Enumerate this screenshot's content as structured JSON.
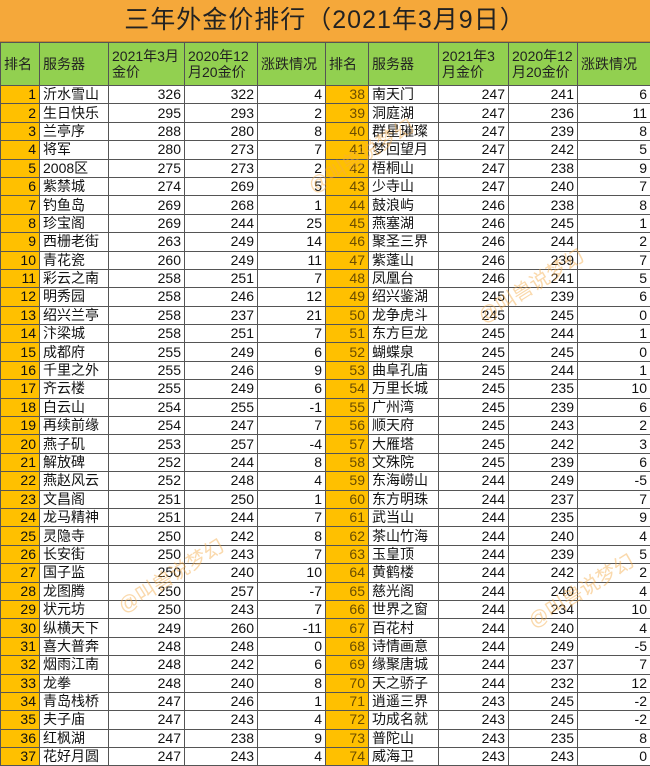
{
  "title": "三年外金价排行（2021年3月9日）",
  "headers_left": [
    "排名",
    "服务器",
    "2021年3月金价",
    "2020年12月20金价",
    "涨跌情况"
  ],
  "headers_right": [
    "排名",
    "服务器",
    "2021年3月金价",
    "2020年12月20金价",
    "涨跌情况"
  ],
  "watermark": "@叫兽说梦幻",
  "colors": {
    "title_bg": "#F5A83A",
    "header_bg": "#92D050",
    "rank_bg": "#FFC000"
  },
  "rows": [
    [
      1,
      "沂水雪山",
      326,
      322,
      4
    ],
    [
      2,
      "生日快乐",
      295,
      293,
      2
    ],
    [
      3,
      "兰亭序",
      288,
      280,
      8
    ],
    [
      4,
      "将军",
      280,
      273,
      7
    ],
    [
      5,
      "2008区",
      275,
      273,
      2
    ],
    [
      6,
      "紫禁城",
      274,
      269,
      5
    ],
    [
      7,
      "钓鱼岛",
      269,
      268,
      1
    ],
    [
      8,
      "珍宝阁",
      269,
      244,
      25
    ],
    [
      9,
      "西栅老街",
      263,
      249,
      14
    ],
    [
      10,
      "青花瓷",
      260,
      249,
      11
    ],
    [
      11,
      "彩云之南",
      258,
      251,
      7
    ],
    [
      12,
      "明秀园",
      258,
      246,
      12
    ],
    [
      13,
      "绍兴兰亭",
      258,
      237,
      21
    ],
    [
      14,
      "汴梁城",
      258,
      251,
      7
    ],
    [
      15,
      "成都府",
      255,
      249,
      6
    ],
    [
      16,
      "千里之外",
      255,
      246,
      9
    ],
    [
      17,
      "齐云楼",
      255,
      249,
      6
    ],
    [
      18,
      "白云山",
      254,
      255,
      -1
    ],
    [
      19,
      "再续前缘",
      254,
      247,
      7
    ],
    [
      20,
      "燕子矶",
      253,
      257,
      -4
    ],
    [
      21,
      "解放碑",
      252,
      244,
      8
    ],
    [
      22,
      "燕赵风云",
      252,
      248,
      4
    ],
    [
      23,
      "文昌阁",
      251,
      250,
      1
    ],
    [
      24,
      "龙马精神",
      251,
      244,
      7
    ],
    [
      25,
      "灵隐寺",
      250,
      242,
      8
    ],
    [
      26,
      "长安街",
      250,
      243,
      7
    ],
    [
      27,
      "国子监",
      250,
      240,
      10
    ],
    [
      28,
      "龙图腾",
      250,
      257,
      -7
    ],
    [
      29,
      "状元坊",
      250,
      243,
      7
    ],
    [
      30,
      "纵横天下",
      249,
      260,
      -11
    ],
    [
      31,
      "喜大普奔",
      248,
      248,
      0
    ],
    [
      32,
      "烟雨江南",
      248,
      242,
      6
    ],
    [
      33,
      "龙拳",
      248,
      240,
      8
    ],
    [
      34,
      "青岛栈桥",
      247,
      246,
      1
    ],
    [
      35,
      "夫子庙",
      247,
      243,
      4
    ],
    [
      36,
      "红枫湖",
      247,
      238,
      9
    ],
    [
      37,
      "花好月圆",
      247,
      243,
      4
    ],
    [
      38,
      "南天门",
      247,
      241,
      6
    ],
    [
      39,
      "洞庭湖",
      247,
      236,
      11
    ],
    [
      40,
      "群星璀璨",
      247,
      239,
      8
    ],
    [
      41,
      "梦回望月",
      247,
      242,
      5
    ],
    [
      42,
      "梧桐山",
      247,
      238,
      9
    ],
    [
      43,
      "少寺山",
      247,
      240,
      7
    ],
    [
      44,
      "鼓浪屿",
      246,
      238,
      8
    ],
    [
      45,
      "燕塞湖",
      246,
      245,
      1
    ],
    [
      46,
      "聚圣三界",
      246,
      244,
      2
    ],
    [
      47,
      "紫蓬山",
      246,
      239,
      7
    ],
    [
      48,
      "凤凰台",
      246,
      241,
      5
    ],
    [
      49,
      "绍兴鉴湖",
      245,
      239,
      6
    ],
    [
      50,
      "龙争虎斗",
      245,
      245,
      0
    ],
    [
      51,
      "东方巨龙",
      245,
      244,
      1
    ],
    [
      52,
      "蝴蝶泉",
      245,
      245,
      0
    ],
    [
      53,
      "曲阜孔庙",
      245,
      244,
      1
    ],
    [
      54,
      "万里长城",
      245,
      235,
      10
    ],
    [
      55,
      "广州湾",
      245,
      239,
      6
    ],
    [
      56,
      "顺天府",
      245,
      243,
      2
    ],
    [
      57,
      "大雁塔",
      245,
      242,
      3
    ],
    [
      58,
      "文殊院",
      245,
      239,
      6
    ],
    [
      59,
      "东海崂山",
      244,
      249,
      -5
    ],
    [
      60,
      "东方明珠",
      244,
      237,
      7
    ],
    [
      61,
      "武当山",
      244,
      235,
      9
    ],
    [
      62,
      "茶山竹海",
      244,
      240,
      4
    ],
    [
      63,
      "玉皇顶",
      244,
      239,
      5
    ],
    [
      64,
      "黄鹤楼",
      244,
      242,
      2
    ],
    [
      65,
      "慈光阁",
      244,
      240,
      4
    ],
    [
      66,
      "世界之窗",
      244,
      234,
      10
    ],
    [
      67,
      "百花村",
      244,
      240,
      4
    ],
    [
      68,
      "诗情画意",
      244,
      249,
      -5
    ],
    [
      69,
      "缘聚唐城",
      244,
      237,
      7
    ],
    [
      70,
      "天之骄子",
      244,
      232,
      12
    ],
    [
      71,
      "逍遥三界",
      243,
      245,
      -2
    ],
    [
      72,
      "功成名就",
      243,
      245,
      -2
    ],
    [
      73,
      "普陀山",
      243,
      235,
      8
    ],
    [
      74,
      "威海卫",
      243,
      243,
      0
    ]
  ]
}
